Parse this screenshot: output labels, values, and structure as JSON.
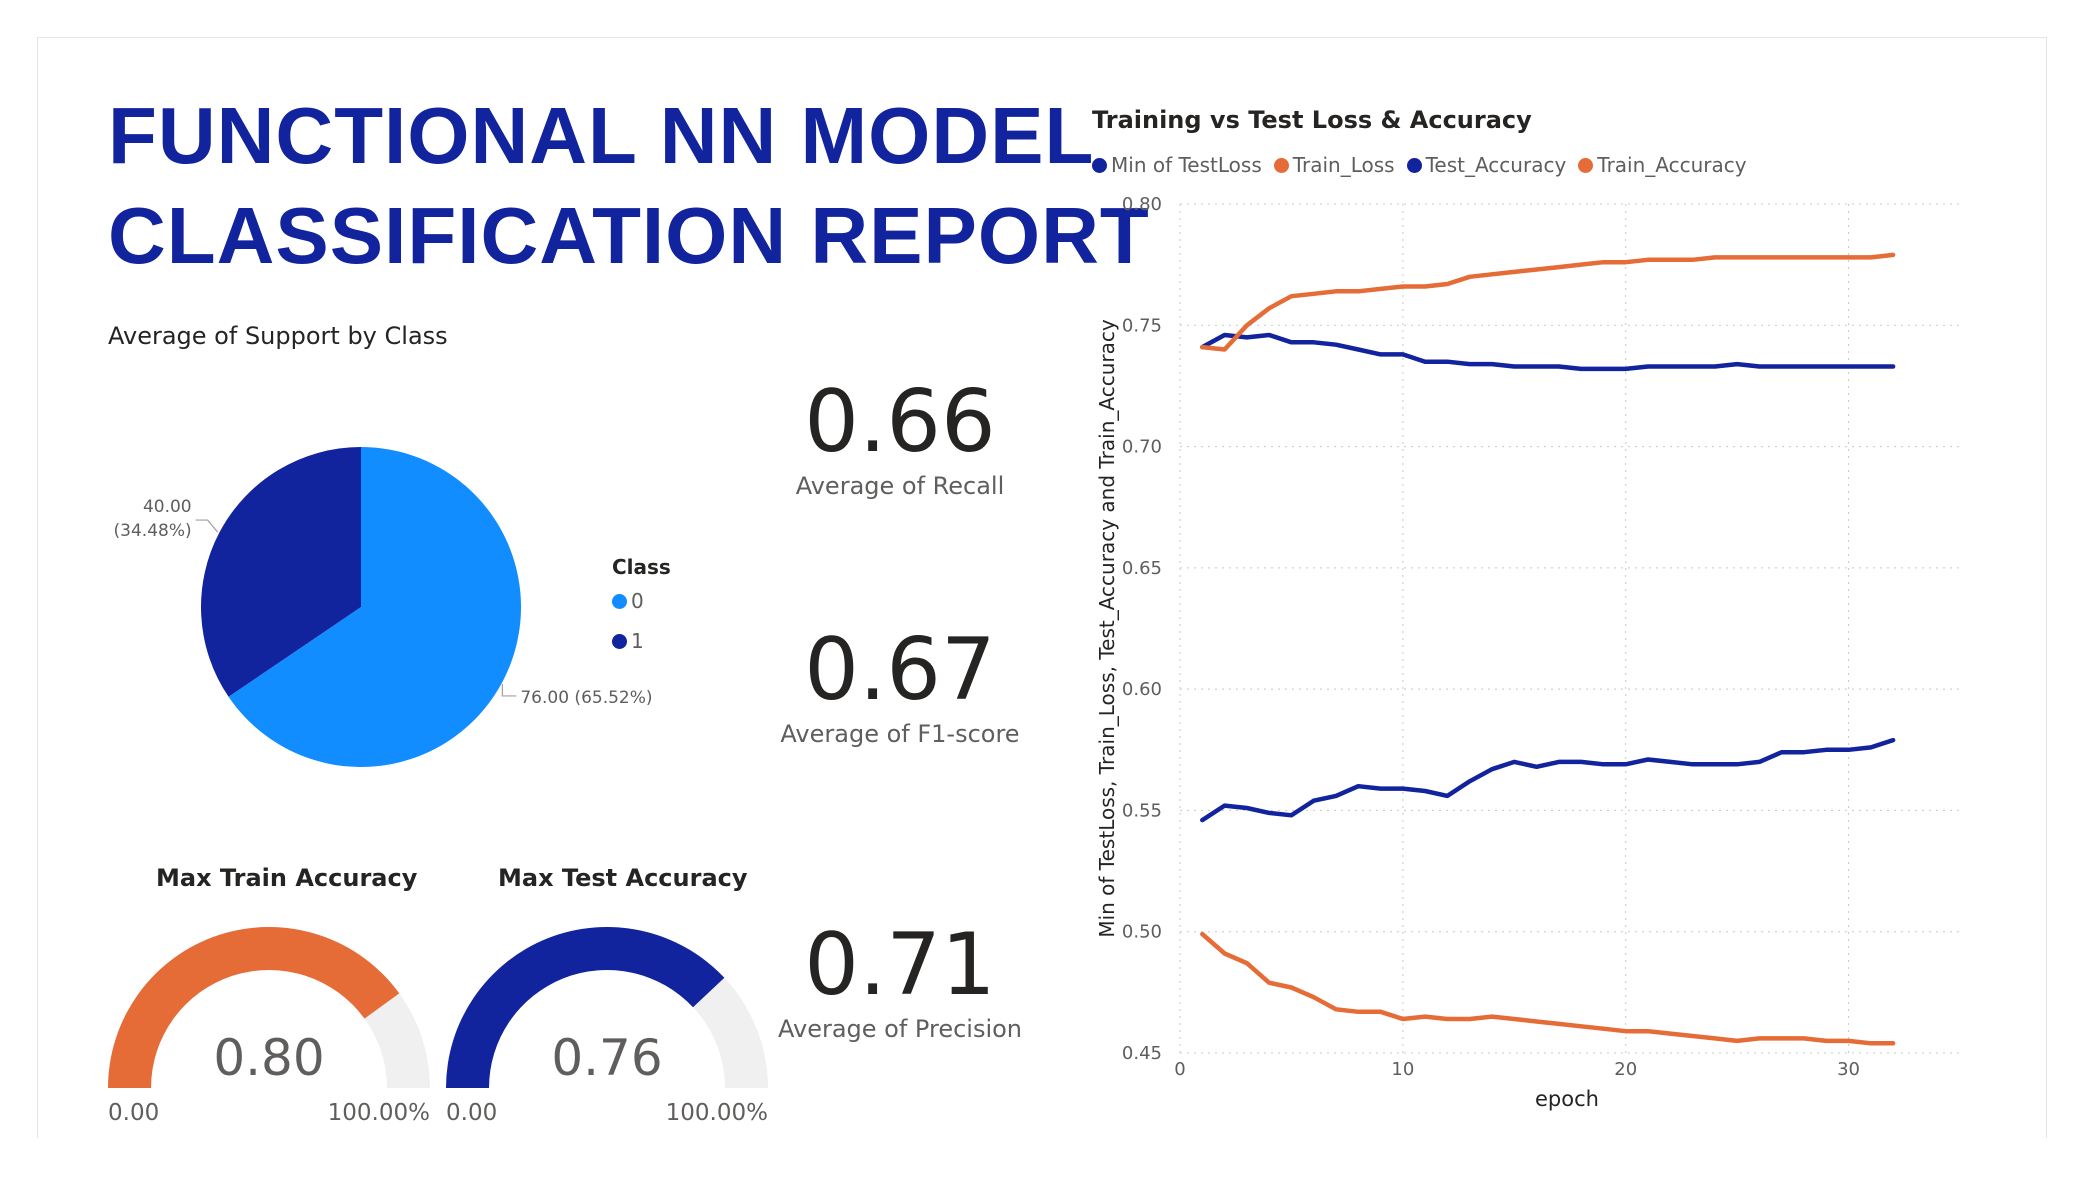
{
  "report": {
    "title_line1": "FUNCTIONAL NN MODEL",
    "title_line2": "CLASSIFICATION REPORT"
  },
  "cards": {
    "recall": {
      "value": "0.66",
      "label": "Average of Recall"
    },
    "f1": {
      "value": "0.67",
      "label": "Average of F1-score"
    },
    "precision": {
      "value": "0.71",
      "label": "Average of Precision"
    }
  },
  "gauges": {
    "train": {
      "title": "Max Train Accuracy",
      "value_label": "0.80",
      "min_label": "0.00",
      "max_label": "100.00%",
      "fill_fraction": 0.8,
      "color": "#E66C37"
    },
    "test": {
      "title": "Max Test Accuracy",
      "value_label": "0.76",
      "min_label": "0.00",
      "max_label": "100.00%",
      "fill_fraction": 0.76,
      "color": "#12239E"
    }
  },
  "colors": {
    "dark_blue": "#12239E",
    "light_blue": "#118DFF",
    "orange": "#E66C37",
    "gauge_track": "#F0F0F0"
  },
  "chart_data": [
    {
      "type": "pie",
      "title": "Average of Support by Class",
      "legend_title": "Class",
      "legend_position": "right",
      "categories": [
        "0",
        "1"
      ],
      "values": [
        76.0,
        40.0
      ],
      "data_labels": [
        "76.00 (65.52%)",
        "40.00 (34.48%)"
      ],
      "colors": [
        "#118DFF",
        "#12239E"
      ]
    },
    {
      "type": "line",
      "title": "Training vs Test Loss & Accuracy",
      "xlabel": "epoch",
      "ylabel": "Min of TestLoss, Train_Loss, Test_Accuracy and Train_Accuracy",
      "xlim": [
        0,
        35
      ],
      "ylim": [
        0.45,
        0.8
      ],
      "x_ticks": [
        "0",
        "10",
        "20",
        "30"
      ],
      "y_ticks": [
        "0.45",
        "0.50",
        "0.55",
        "0.60",
        "0.65",
        "0.70",
        "0.75",
        "0.80"
      ],
      "grid": true,
      "legend_position": "top-left",
      "x": [
        1,
        2,
        3,
        4,
        5,
        6,
        7,
        8,
        9,
        10,
        11,
        12,
        13,
        14,
        15,
        16,
        17,
        18,
        19,
        20,
        21,
        22,
        23,
        24,
        25,
        26,
        27,
        28,
        29,
        30,
        31,
        32
      ],
      "series": [
        {
          "name": "Min of TestLoss",
          "color": "#12239E",
          "values": [
            0.546,
            0.552,
            0.551,
            0.549,
            0.548,
            0.554,
            0.556,
            0.56,
            0.559,
            0.559,
            0.558,
            0.556,
            0.562,
            0.567,
            0.57,
            0.568,
            0.57,
            0.57,
            0.569,
            0.569,
            0.571,
            0.57,
            0.569,
            0.569,
            0.569,
            0.57,
            0.574,
            0.574,
            0.575,
            0.575,
            0.576,
            0.579
          ]
        },
        {
          "name": "Train_Loss",
          "color": "#E66C37",
          "values": [
            0.499,
            0.491,
            0.487,
            0.479,
            0.477,
            0.473,
            0.468,
            0.467,
            0.467,
            0.464,
            0.465,
            0.464,
            0.464,
            0.465,
            0.464,
            0.463,
            0.462,
            0.461,
            0.46,
            0.459,
            0.459,
            0.458,
            0.457,
            0.456,
            0.455,
            0.456,
            0.456,
            0.456,
            0.455,
            0.455,
            0.454,
            0.454
          ]
        },
        {
          "name": "Test_Accuracy",
          "color": "#12239E",
          "values": [
            0.741,
            0.746,
            0.745,
            0.746,
            0.743,
            0.743,
            0.742,
            0.74,
            0.738,
            0.738,
            0.735,
            0.735,
            0.734,
            0.734,
            0.733,
            0.733,
            0.733,
            0.732,
            0.732,
            0.732,
            0.733,
            0.733,
            0.733,
            0.733,
            0.734,
            0.733,
            0.733,
            0.733,
            0.733,
            0.733,
            0.733,
            0.733
          ]
        },
        {
          "name": "Train_Accuracy",
          "color": "#E66C37",
          "values": [
            0.741,
            0.74,
            0.75,
            0.757,
            0.762,
            0.763,
            0.764,
            0.764,
            0.765,
            0.766,
            0.766,
            0.767,
            0.77,
            0.771,
            0.772,
            0.773,
            0.774,
            0.775,
            0.776,
            0.776,
            0.777,
            0.777,
            0.777,
            0.778,
            0.778,
            0.778,
            0.778,
            0.778,
            0.778,
            0.778,
            0.778,
            0.779
          ]
        }
      ]
    }
  ]
}
